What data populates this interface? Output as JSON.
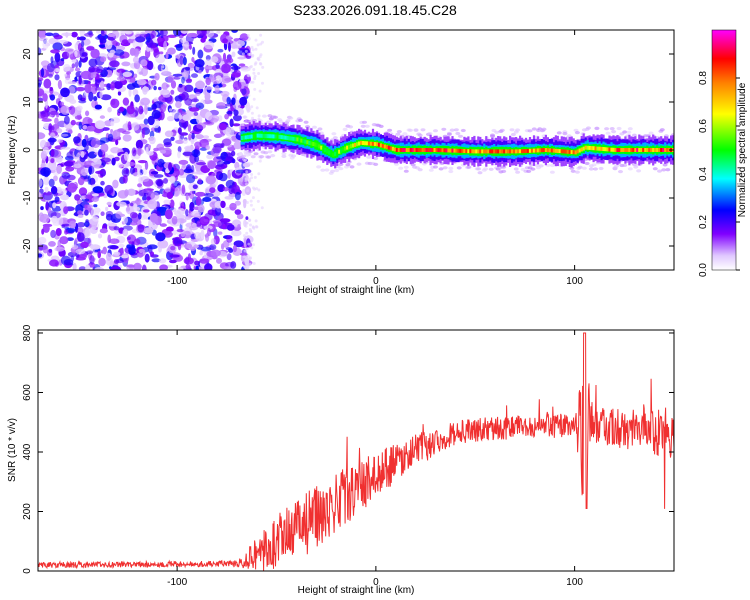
{
  "title": "S233.2026.091.18.45.C28",
  "chart_data": [
    {
      "type": "heatmap",
      "xlabel": "Height of straight line (km)",
      "ylabel": "Frequency (Hz)",
      "xlim": [
        -170,
        150
      ],
      "ylim": [
        -25,
        25
      ],
      "xticks": [
        -100,
        0,
        100
      ],
      "yticks": [
        -20,
        -10,
        0,
        10,
        20
      ],
      "colorbar": {
        "label": "Normalized spectral amplitude",
        "range": [
          0,
          1
        ],
        "ticks": [
          0.0,
          0.2,
          0.4,
          0.6,
          0.8
        ],
        "colors": [
          "#ffffff",
          "#8000ff",
          "#0000ff",
          "#00ffff",
          "#00ff00",
          "#ffff00",
          "#ff8000",
          "#ff0000",
          "#ff00ff"
        ]
      },
      "noise_region_x": [
        -170,
        -67
      ],
      "ridge": [
        {
          "x": -68,
          "f": 2.5,
          "a": 0.45
        },
        {
          "x": -60,
          "f": 3.0,
          "a": 0.5
        },
        {
          "x": -50,
          "f": 2.8,
          "a": 0.5
        },
        {
          "x": -40,
          "f": 2.2,
          "a": 0.55
        },
        {
          "x": -30,
          "f": 1.0,
          "a": 0.6
        },
        {
          "x": -22,
          "f": -1.0,
          "a": 0.6
        },
        {
          "x": -15,
          "f": 0.5,
          "a": 0.65
        },
        {
          "x": -8,
          "f": 1.5,
          "a": 0.8
        },
        {
          "x": 0,
          "f": 1.2,
          "a": 0.85
        },
        {
          "x": 10,
          "f": 0.0,
          "a": 0.9
        },
        {
          "x": 30,
          "f": 0.0,
          "a": 0.9
        },
        {
          "x": 50,
          "f": -0.3,
          "a": 0.85
        },
        {
          "x": 70,
          "f": -0.3,
          "a": 0.85
        },
        {
          "x": 85,
          "f": 0.0,
          "a": 0.9
        },
        {
          "x": 100,
          "f": -0.5,
          "a": 0.8
        },
        {
          "x": 105,
          "f": 0.5,
          "a": 0.7
        },
        {
          "x": 120,
          "f": 0.0,
          "a": 0.9
        },
        {
          "x": 150,
          "f": 0.0,
          "a": 0.9
        }
      ]
    },
    {
      "type": "line",
      "xlabel": "Height of straight line (km)",
      "ylabel": "SNR (10 * v/v)",
      "xlim": [
        -170,
        150
      ],
      "ylim": [
        0,
        810
      ],
      "xticks": [
        -100,
        0,
        100
      ],
      "yticks": [
        0,
        200,
        400,
        600,
        800
      ],
      "color": "#f03030",
      "series_envelope": [
        {
          "x": -170,
          "y": 20,
          "noise": 10
        },
        {
          "x": -70,
          "y": 25,
          "noise": 10
        },
        {
          "x": -60,
          "y": 60,
          "noise": 60
        },
        {
          "x": -40,
          "y": 130,
          "noise": 120
        },
        {
          "x": -20,
          "y": 230,
          "noise": 100
        },
        {
          "x": 0,
          "y": 320,
          "noise": 80
        },
        {
          "x": 20,
          "y": 410,
          "noise": 50
        },
        {
          "x": 40,
          "y": 465,
          "noise": 40
        },
        {
          "x": 60,
          "y": 480,
          "noise": 40
        },
        {
          "x": 100,
          "y": 490,
          "noise": 40
        },
        {
          "x": 104,
          "y": 480,
          "noise": 250
        },
        {
          "x": 110,
          "y": 490,
          "noise": 60
        },
        {
          "x": 140,
          "y": 470,
          "noise": 80
        },
        {
          "x": 150,
          "y": 460,
          "noise": 90
        }
      ]
    }
  ]
}
